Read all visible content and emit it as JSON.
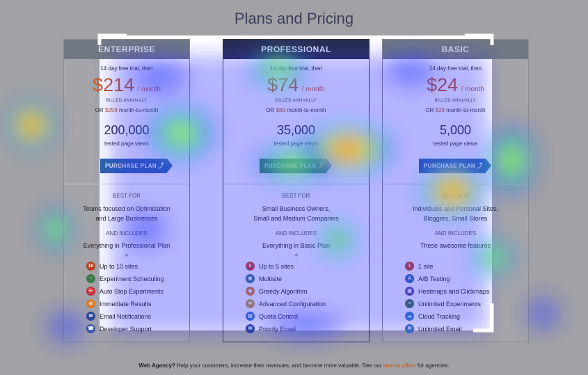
{
  "page": {
    "title": "Plans and Pricing"
  },
  "columns": [
    {
      "name": "ENTERPRISE",
      "trial": "14 day free trial, then",
      "price": "$214",
      "per": "/ month",
      "billed": "BILLED ANNUALLY",
      "m2m_prefix": "OR ",
      "m2m_price": "$258",
      "m2m_suffix": " month-to-month",
      "views": "200,000",
      "views_label": "tested page views",
      "cta": "PURCHASE PLAN",
      "best_label": "BEST FOR",
      "best_line1": "Teams focused on Optimization",
      "best_line2": "and Large Businesses",
      "incl_label": "AND INCLUDES",
      "everything": "Everything in Professional Plan",
      "plus": "+",
      "features": [
        {
          "icon": "10",
          "label": "Up to 10 sites",
          "color": "#b5401f"
        },
        {
          "icon": "◔",
          "label": "Experiment Scheduling",
          "color": "#3c7a4a"
        },
        {
          "icon": "⛔",
          "label": "Auto Stop Experiments",
          "color": "#c0334a"
        },
        {
          "icon": "◎",
          "label": "Immediate Results",
          "color": "#d97a1e"
        },
        {
          "icon": "✉",
          "label": "Email Notifications",
          "color": "#2f4a8a"
        },
        {
          "icon": "☎",
          "label": "Developer Support",
          "color": "#3a5aa0"
        }
      ]
    },
    {
      "name": "PROFESSIONAL",
      "trial": "14 day free trial, then",
      "price": "$74",
      "per": "/ month",
      "billed": "BILLED ANNUALLY",
      "m2m_prefix": "OR ",
      "m2m_price": "$89",
      "m2m_suffix": " month-to-month",
      "views": "35,000",
      "views_label": "tested page views",
      "cta": "PURCHASE PLAN",
      "best_label": "BEST FOR",
      "best_line1": "Small Business Owners,",
      "best_line2": "Small and Medium Companies",
      "incl_label": "AND INCLUDES",
      "everything": "Everything in Basic Plan",
      "plus": "+",
      "features": [
        {
          "icon": "5",
          "label": "Up to 5 sites",
          "color": "#d2452a"
        },
        {
          "icon": "◉",
          "label": "Multisite",
          "color": "#3d7a86"
        },
        {
          "icon": "◆",
          "label": "Greedy Algorithm",
          "color": "#e0832a"
        },
        {
          "icon": "✲",
          "label": "Advanced Configuration",
          "color": "#c8a233"
        },
        {
          "icon": "▤",
          "label": "Quota Control",
          "color": "#3a78b8"
        },
        {
          "icon": "✉",
          "label": "Priority Email",
          "color": "#2f4a8a"
        }
      ]
    },
    {
      "name": "BASIC",
      "trial": "14 day free trial, then",
      "price": "$24",
      "per": "/ month",
      "billed": "BILLED ANNUALLY",
      "m2m_prefix": "OR ",
      "m2m_price": "$29",
      "m2m_suffix": " month-to-month",
      "views": "5,000",
      "views_label": "tested page views",
      "cta": "PURCHASE PLAN",
      "best_label": "BEST FOR",
      "best_line1": "Individuals and Personal Sites,",
      "best_line2": "Bloggers, Small Stores",
      "incl_label": "AND INCLUDES",
      "everything": "These awesome features",
      "plus": "",
      "features": [
        {
          "icon": "1",
          "label": "1 site",
          "color": "#d2452a"
        },
        {
          "icon": "A",
          "label": "A/B Testing",
          "color": "#3a6fb0"
        },
        {
          "icon": "▦",
          "label": "Heatmaps and Clickmaps",
          "color": "#5e4aa0"
        },
        {
          "icon": "≡",
          "label": "Unlimited Experiments",
          "color": "#3c7a4a"
        },
        {
          "icon": "☁",
          "label": "Cloud Tracking",
          "color": "#2f86c8"
        },
        {
          "icon": "✉",
          "label": "Unlimited Email",
          "color": "#3a78b8"
        }
      ]
    }
  ],
  "footer": {
    "bold": "Web Agency?",
    "text": " Help your customers, increase their revenues, and become more valuable. See our ",
    "link": "special offers",
    "tail": " for agencies."
  }
}
